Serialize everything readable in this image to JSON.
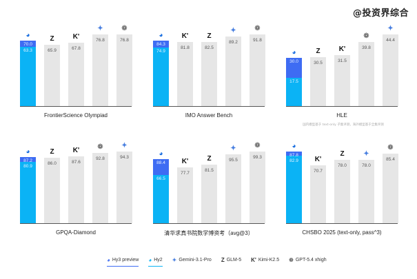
{
  "watermark": "@投资界综合",
  "legend": [
    {
      "label": "Hy3 preview",
      "icon": "hunyuan-icon",
      "glyph": "◕",
      "color": "#3e6cf3"
    },
    {
      "label": "Hy2",
      "icon": "hunyuan-icon",
      "glyph": "◕",
      "color": "#0bb3f5"
    },
    {
      "label": "Gemini-3.1-Pro",
      "icon": "gemini-sparkle-icon",
      "glyph": "✦",
      "color": "#4a80e0"
    },
    {
      "label": "GLM-5",
      "icon": "zhipu-z-icon",
      "glyph": "Z",
      "color": "#111111"
    },
    {
      "label": "Kimi-K2.5",
      "icon": "kimi-k-icon",
      "glyph": "K'",
      "color": "#111111"
    },
    {
      "label": "GPT-5.4 xhigh",
      "icon": "openai-icon",
      "glyph": "❁",
      "color": "#333333"
    }
  ],
  "chart_data": [
    {
      "type": "bar",
      "title": "FrontierScience Olympiad",
      "categories": [
        "Hy3 preview / Hy2",
        "GLM-5",
        "Kimi-K2.5",
        "Gemini-3.1-Pro",
        "GPT-5.4 xhigh"
      ],
      "series": [
        {
          "name": "Hy3 preview",
          "values": [
            70.0
          ]
        },
        {
          "name": "Hy2",
          "values": [
            63.3
          ]
        },
        {
          "name": "Others",
          "values": [
            65.9,
            67.8,
            76.8,
            76.8
          ]
        }
      ],
      "hy3": "70.0",
      "hy2": "63.3",
      "others": [
        {
          "model": "GLM-5",
          "value": "65.9",
          "glyph": "Z",
          "cls": ""
        },
        {
          "model": "Kimi-K2.5",
          "value": "67.8",
          "glyph": "K'",
          "cls": ""
        },
        {
          "model": "Gemini-3.1-Pro",
          "value": "76.8",
          "glyph": "✦",
          "cls": "gem"
        },
        {
          "model": "GPT-5.4 xhigh",
          "value": "76.8",
          "glyph": "❁",
          "cls": "gpt"
        }
      ],
      "note": ""
    },
    {
      "type": "bar",
      "title": "IMO Answer Bench",
      "hy3": "84.3",
      "hy2": "74.9",
      "others": [
        {
          "model": "Kimi-K2.5",
          "value": "81.8",
          "glyph": "K'",
          "cls": ""
        },
        {
          "model": "GLM-5",
          "value": "82.5",
          "glyph": "Z",
          "cls": ""
        },
        {
          "model": "Gemini-3.1-Pro",
          "value": "89.2",
          "glyph": "✦",
          "cls": "gem"
        },
        {
          "model": "GPT-5.4 xhigh",
          "value": "91.8",
          "glyph": "❁",
          "cls": "gpt"
        }
      ],
      "note": ""
    },
    {
      "type": "bar",
      "title": "HLE",
      "hy3": "30.0",
      "hy2": "17.5",
      "others": [
        {
          "model": "GLM-5",
          "value": "30.5",
          "glyph": "Z",
          "cls": ""
        },
        {
          "model": "Kimi-K2.5",
          "value": "31.5",
          "glyph": "K'",
          "cls": ""
        },
        {
          "model": "GPT-5.4 xhigh",
          "value": "39.8",
          "glyph": "❁",
          "cls": "gpt"
        },
        {
          "model": "Gemini-3.1-Pro",
          "value": "44.4",
          "glyph": "✦",
          "cls": "gem"
        }
      ],
      "note": "国内模型基于 text-only 子集评测，海外模型基于全集评测"
    },
    {
      "type": "bar",
      "title": "GPQA-Diamond",
      "hy3": "87.2",
      "hy2": "80.9",
      "others": [
        {
          "model": "GLM-5",
          "value": "86.0",
          "glyph": "Z",
          "cls": ""
        },
        {
          "model": "Kimi-K2.5",
          "value": "87.6",
          "glyph": "K'",
          "cls": ""
        },
        {
          "model": "GPT-5.4 xhigh",
          "value": "92.8",
          "glyph": "❁",
          "cls": "gpt"
        },
        {
          "model": "Gemini-3.1-Pro",
          "value": "94.3",
          "glyph": "✦",
          "cls": "gem"
        }
      ],
      "note": ""
    },
    {
      "type": "bar",
      "title": "清华求真书院数学博资考（avg@3）",
      "hy3": "88.4",
      "hy2": "66.5",
      "others": [
        {
          "model": "Kimi-K2.5",
          "value": "77.7",
          "glyph": "K'",
          "cls": ""
        },
        {
          "model": "GLM-5",
          "value": "81.5",
          "glyph": "Z",
          "cls": ""
        },
        {
          "model": "Gemini-3.1-Pro",
          "value": "95.5",
          "glyph": "✦",
          "cls": "gem"
        },
        {
          "model": "GPT-5.4 xhigh",
          "value": "99.3",
          "glyph": "❁",
          "cls": "gpt"
        }
      ],
      "note": ""
    },
    {
      "type": "bar",
      "title": "CHSBO 2025 (text-only, pass^3)",
      "hy3": "87.8",
      "hy2": "82.9",
      "others": [
        {
          "model": "Kimi-K2.5",
          "value": "70.7",
          "glyph": "K'",
          "cls": ""
        },
        {
          "model": "GLM-5",
          "value": "78.0",
          "glyph": "Z",
          "cls": ""
        },
        {
          "model": "Gemini-3.1-Pro",
          "value": "78.0",
          "glyph": "✦",
          "cls": "gem"
        },
        {
          "model": "GPT-5.4 xhigh",
          "value": "85.4",
          "glyph": "❁",
          "cls": "gpt"
        }
      ],
      "note": ""
    }
  ]
}
